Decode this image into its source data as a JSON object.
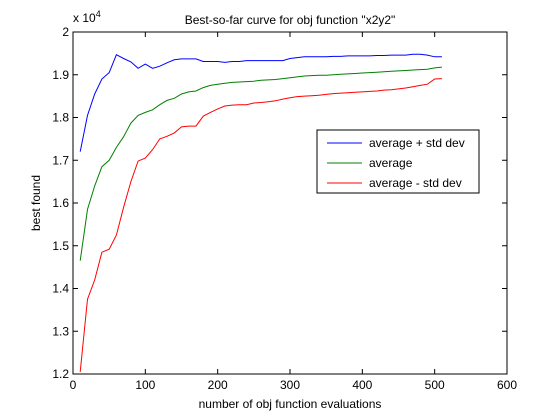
{
  "chart_data": {
    "type": "line",
    "title": "Best-so-far curve for obj function \"x2y2\"",
    "xlabel": "number of obj function evaluations",
    "ylabel": "best found",
    "xlim": [
      0,
      600
    ],
    "ylim": [
      12000,
      20000
    ],
    "xticks": [
      0,
      100,
      200,
      300,
      400,
      500,
      600
    ],
    "xtick_labels": [
      "0",
      "100",
      "200",
      "300",
      "400",
      "500",
      "600"
    ],
    "yticks": [
      12000,
      13000,
      14000,
      15000,
      16000,
      17000,
      18000,
      19000,
      20000
    ],
    "ytick_labels": [
      "1.2",
      "1.3",
      "1.4",
      "1.5",
      "1.6",
      "1.7",
      "1.8",
      "1.9",
      "2"
    ],
    "y_multiplier": {
      "base": "x 10",
      "exponent": "4"
    },
    "grid": false,
    "legend_position": "center-right",
    "x": [
      10,
      20,
      30,
      40,
      50,
      60,
      70,
      80,
      90,
      100,
      110,
      120,
      130,
      140,
      150,
      160,
      170,
      180,
      190,
      200,
      210,
      220,
      230,
      240,
      250,
      260,
      270,
      280,
      290,
      300,
      310,
      320,
      330,
      340,
      350,
      360,
      370,
      380,
      390,
      400,
      410,
      420,
      430,
      440,
      450,
      460,
      470,
      480,
      490,
      500,
      510
    ],
    "series": [
      {
        "name": "average + std dev",
        "color": "#0000ff",
        "values": [
          17200,
          18050,
          18550,
          18900,
          19050,
          19470,
          19380,
          19300,
          19150,
          19250,
          19150,
          19200,
          19280,
          19350,
          19370,
          19370,
          19370,
          19310,
          19310,
          19310,
          19290,
          19310,
          19310,
          19330,
          19330,
          19330,
          19330,
          19330,
          19330,
          19380,
          19400,
          19420,
          19420,
          19420,
          19420,
          19430,
          19430,
          19440,
          19440,
          19440,
          19440,
          19450,
          19450,
          19460,
          19460,
          19460,
          19480,
          19480,
          19460,
          19420,
          19420
        ]
      },
      {
        "name": "average",
        "color": "#008000",
        "values": [
          14650,
          15850,
          16400,
          16850,
          17000,
          17300,
          17550,
          17870,
          18050,
          18120,
          18180,
          18300,
          18400,
          18450,
          18550,
          18600,
          18620,
          18700,
          18750,
          18780,
          18800,
          18820,
          18830,
          18840,
          18850,
          18870,
          18880,
          18890,
          18910,
          18930,
          18950,
          18970,
          18980,
          18990,
          18990,
          19000,
          19010,
          19020,
          19030,
          19040,
          19050,
          19060,
          19070,
          19080,
          19090,
          19100,
          19110,
          19120,
          19130,
          19160,
          19180
        ]
      },
      {
        "name": "average - std dev",
        "color": "#ff0000",
        "values": [
          12050,
          13750,
          14200,
          14850,
          14920,
          15250,
          15900,
          16500,
          16980,
          17050,
          17250,
          17500,
          17560,
          17640,
          17780,
          17800,
          17800,
          18030,
          18120,
          18200,
          18270,
          18290,
          18300,
          18300,
          18340,
          18350,
          18370,
          18390,
          18430,
          18460,
          18490,
          18500,
          18510,
          18520,
          18540,
          18560,
          18570,
          18580,
          18590,
          18600,
          18610,
          18620,
          18640,
          18650,
          18670,
          18690,
          18720,
          18750,
          18780,
          18900,
          18910
        ]
      }
    ]
  }
}
